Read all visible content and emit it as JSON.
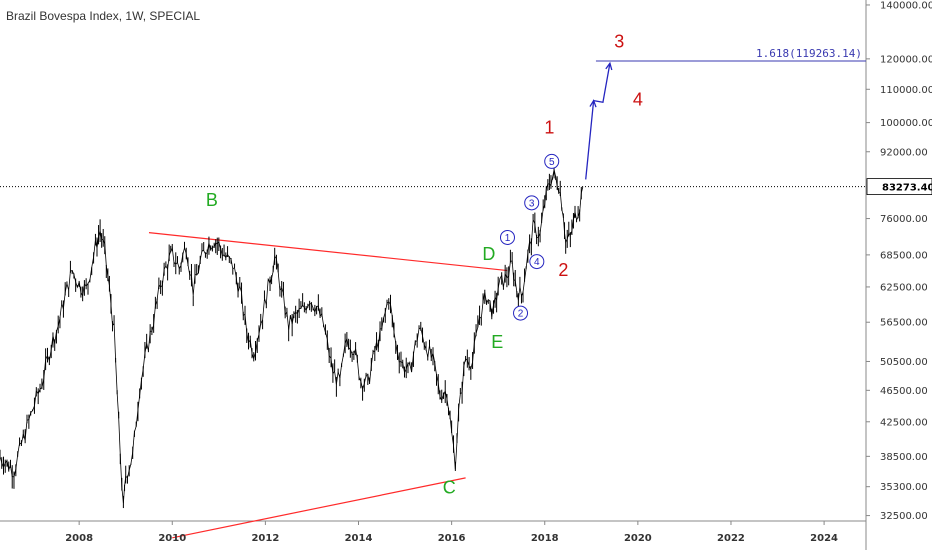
{
  "chart_data": {
    "type": "line",
    "title": "Brazil Bovespa Index, 1W, SPECIAL",
    "xlabel": "",
    "ylabel": "",
    "y_scale": "log",
    "xlim": [
      2006.3,
      2024.9
    ],
    "ylim": [
      32000,
      142000
    ],
    "x_ticks": [
      {
        "value": 2008,
        "label": "2008"
      },
      {
        "value": 2010,
        "label": "2010"
      },
      {
        "value": 2012,
        "label": "2012"
      },
      {
        "value": 2014,
        "label": "2014"
      },
      {
        "value": 2016,
        "label": "2016"
      },
      {
        "value": 2018,
        "label": "2018"
      },
      {
        "value": 2020,
        "label": "2020"
      },
      {
        "value": 2022,
        "label": "2022"
      },
      {
        "value": 2024,
        "label": "2024"
      }
    ],
    "y_ticks": [
      {
        "value": 140000,
        "label": "140000.00"
      },
      {
        "value": 120000,
        "label": "120000.00"
      },
      {
        "value": 110000,
        "label": "110000.00"
      },
      {
        "value": 100000,
        "label": "100000.00"
      },
      {
        "value": 92000,
        "label": "92000.00"
      },
      {
        "value": 76000,
        "label": "76000.00"
      },
      {
        "value": 68500,
        "label": "68500.00"
      },
      {
        "value": 62500,
        "label": "62500.00"
      },
      {
        "value": 56500,
        "label": "56500.00"
      },
      {
        "value": 50500,
        "label": "50500.00"
      },
      {
        "value": 46500,
        "label": "46500.00"
      },
      {
        "value": 42500,
        "label": "42500.00"
      },
      {
        "value": 38500,
        "label": "38500.00"
      },
      {
        "value": 35300,
        "label": "35300.00"
      },
      {
        "value": 32500,
        "label": "32500.00"
      }
    ],
    "series": [
      {
        "color": "#000000",
        "points": [
          [
            2006.3,
            38500
          ],
          [
            2006.6,
            37000
          ],
          [
            2006.8,
            40500
          ],
          [
            2007.0,
            44000
          ],
          [
            2007.2,
            47500
          ],
          [
            2007.4,
            53000
          ],
          [
            2007.55,
            56000
          ],
          [
            2007.7,
            61000
          ],
          [
            2007.85,
            65500
          ],
          [
            2008.0,
            63000
          ],
          [
            2008.15,
            62000
          ],
          [
            2008.35,
            70000
          ],
          [
            2008.45,
            73500
          ],
          [
            2008.55,
            69000
          ],
          [
            2008.65,
            62000
          ],
          [
            2008.75,
            55000
          ],
          [
            2008.85,
            42000
          ],
          [
            2008.95,
            33000
          ],
          [
            2009.0,
            36500
          ],
          [
            2009.15,
            38500
          ],
          [
            2009.3,
            47000
          ],
          [
            2009.45,
            52000
          ],
          [
            2009.6,
            57000
          ],
          [
            2009.75,
            63000
          ],
          [
            2009.9,
            67000
          ],
          [
            2010.0,
            68500
          ],
          [
            2010.15,
            66000
          ],
          [
            2010.3,
            70500
          ],
          [
            2010.45,
            62000
          ],
          [
            2010.6,
            67000
          ],
          [
            2010.75,
            70500
          ],
          [
            2010.9,
            71500
          ],
          [
            2011.0,
            70500
          ],
          [
            2011.15,
            68000
          ],
          [
            2011.3,
            66500
          ],
          [
            2011.45,
            62000
          ],
          [
            2011.6,
            55000
          ],
          [
            2011.75,
            52000
          ],
          [
            2011.9,
            56500
          ],
          [
            2012.1,
            64000
          ],
          [
            2012.2,
            68000
          ],
          [
            2012.35,
            61500
          ],
          [
            2012.5,
            56000
          ],
          [
            2012.65,
            57500
          ],
          [
            2012.8,
            58500
          ],
          [
            2012.95,
            60500
          ],
          [
            2013.1,
            59000
          ],
          [
            2013.25,
            56000
          ],
          [
            2013.45,
            49000
          ],
          [
            2013.6,
            47500
          ],
          [
            2013.75,
            54000
          ],
          [
            2013.9,
            52500
          ],
          [
            2014.05,
            48000
          ],
          [
            2014.2,
            47500
          ],
          [
            2014.35,
            52000
          ],
          [
            2014.5,
            55000
          ],
          [
            2014.65,
            61000
          ],
          [
            2014.8,
            53000
          ],
          [
            2014.95,
            50000
          ],
          [
            2015.1,
            49000
          ],
          [
            2015.3,
            55500
          ],
          [
            2015.45,
            53000
          ],
          [
            2015.6,
            50500
          ],
          [
            2015.75,
            46000
          ],
          [
            2015.9,
            46500
          ],
          [
            2016.0,
            41000
          ],
          [
            2016.08,
            38000
          ],
          [
            2016.15,
            43500
          ],
          [
            2016.3,
            51000
          ],
          [
            2016.45,
            50500
          ],
          [
            2016.6,
            57500
          ],
          [
            2016.75,
            61000
          ],
          [
            2016.9,
            58000
          ],
          [
            2017.0,
            62500
          ],
          [
            2017.15,
            64000
          ],
          [
            2017.3,
            66500
          ],
          [
            2017.4,
            62000
          ],
          [
            2017.5,
            61000
          ],
          [
            2017.6,
            66500
          ],
          [
            2017.75,
            74000
          ],
          [
            2017.9,
            72500
          ],
          [
            2018.0,
            79500
          ],
          [
            2018.1,
            84500
          ],
          [
            2018.2,
            86000
          ],
          [
            2018.3,
            84000
          ],
          [
            2018.4,
            77500
          ],
          [
            2018.45,
            71000
          ],
          [
            2018.55,
            72000
          ],
          [
            2018.65,
            76500
          ],
          [
            2018.75,
            79000
          ],
          [
            2018.82,
            83273
          ]
        ]
      }
    ],
    "last_price": {
      "value": 83273.4,
      "label": "83273.40"
    },
    "annotations": {
      "fib_level": {
        "value": 119263.14,
        "label": "1.618(119263.14)",
        "x_start": 2019.1,
        "x_end": 2024.9,
        "color": "#3a3ab0"
      },
      "trendline_upper": {
        "x1": 2009.5,
        "y1": 73000,
        "x2": 2017.2,
        "y2": 65500,
        "color": "#ff2a2a"
      },
      "trendline_lower": {
        "x1": 2010.0,
        "y1": 30500,
        "x2": 2016.3,
        "y2": 36200,
        "color": "#ff2a2a"
      },
      "projection_arrow": {
        "color": "#2525c0",
        "points": [
          [
            2018.88,
            85000
          ],
          [
            2019.05,
            106500
          ],
          [
            2019.25,
            106000
          ],
          [
            2019.4,
            118500
          ]
        ]
      },
      "wave_labels_large": [
        {
          "text": "B",
          "x": 2010.85,
          "y": 78800,
          "color": "#22aa22"
        },
        {
          "text": "C",
          "x": 2015.95,
          "y": 34600,
          "color": "#22aa22"
        },
        {
          "text": "D",
          "x": 2016.8,
          "y": 67500,
          "color": "#22aa22"
        },
        {
          "text": "E",
          "x": 2016.98,
          "y": 52500,
          "color": "#22aa22"
        },
        {
          "text": "1",
          "x": 2018.1,
          "y": 97000,
          "color": "#cc1111"
        },
        {
          "text": "2",
          "x": 2018.4,
          "y": 64500,
          "color": "#cc1111"
        },
        {
          "text": "3",
          "x": 2019.6,
          "y": 124000,
          "color": "#cc1111"
        },
        {
          "text": "4",
          "x": 2020.0,
          "y": 105000,
          "color": "#cc1111"
        }
      ],
      "wave_labels_circled": [
        {
          "text": "1",
          "x": 2017.2,
          "y": 72000,
          "color": "#2525c0"
        },
        {
          "text": "2",
          "x": 2017.48,
          "y": 58000,
          "color": "#2525c0"
        },
        {
          "text": "3",
          "x": 2017.72,
          "y": 79500,
          "color": "#2525c0"
        },
        {
          "text": "4",
          "x": 2017.83,
          "y": 67200,
          "color": "#2525c0"
        },
        {
          "text": "5",
          "x": 2018.15,
          "y": 89500,
          "color": "#2525c0"
        }
      ]
    }
  }
}
